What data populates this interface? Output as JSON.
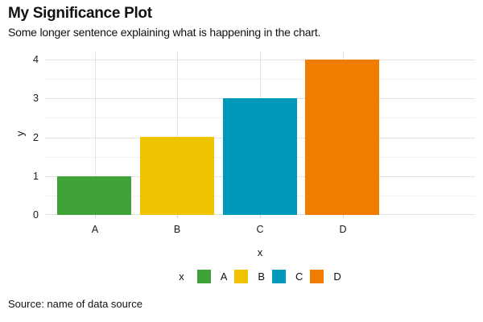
{
  "chart_data": {
    "type": "bar",
    "title": "My Significance Plot",
    "subtitle": "Some longer sentence explaining what is happening in the chart.",
    "caption": "Source: name of data source",
    "categories": [
      "A",
      "B",
      "C",
      "D"
    ],
    "values": [
      1,
      2,
      3,
      4
    ],
    "colors": [
      "#3FA33A",
      "#F0C300",
      "#0098BB",
      "#F07C00"
    ],
    "xlabel": "x",
    "ylabel": "y",
    "ylim": [
      0,
      4
    ],
    "yticks": [
      0,
      1,
      2,
      3,
      4
    ],
    "grid": "horizontal major+minor, vertical major at category centers",
    "legend": {
      "position": "bottom",
      "title": "x",
      "items": [
        {
          "label": "A",
          "color": "#3FA33A"
        },
        {
          "label": "B",
          "color": "#F0C300"
        },
        {
          "label": "C",
          "color": "#0098BB"
        },
        {
          "label": "D",
          "color": "#F07C00"
        }
      ]
    }
  }
}
